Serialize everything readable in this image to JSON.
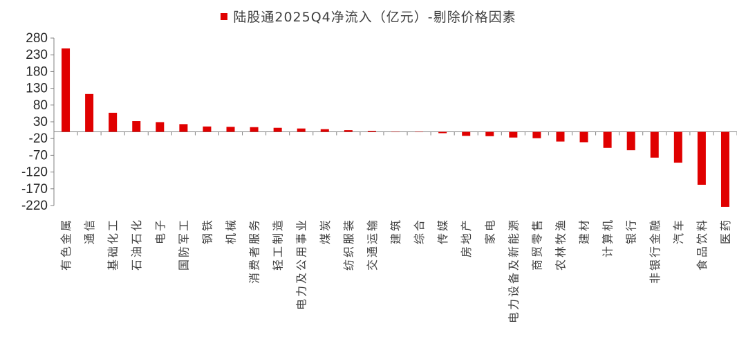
{
  "chart_data": {
    "type": "bar",
    "series": [
      {
        "name": "陆股通2025Q4净流入（亿元）-剔除价格因素",
        "color": "#e00000"
      }
    ],
    "categories": [
      "有色金属",
      "通信",
      "基础化工",
      "石油石化",
      "电子",
      "国防军工",
      "钢铁",
      "机械",
      "消费者服务",
      "轻工制造",
      "电力及公用事业",
      "煤炭",
      "纺织服装",
      "交通运输",
      "建筑",
      "综合",
      "传媒",
      "房地产",
      "家电",
      "电力设备及新能源",
      "商贸零售",
      "农林牧渔",
      "建材",
      "计算机",
      "银行",
      "非银行金融",
      "汽车",
      "食品饮料",
      "医药"
    ],
    "values": [
      249,
      113,
      57,
      32,
      29,
      23,
      16,
      15,
      14,
      12,
      10,
      8,
      5,
      3,
      0,
      0,
      -4,
      -12,
      -13,
      -17,
      -19,
      -29,
      -31,
      -48,
      -55,
      -77,
      -92,
      -158,
      -224
    ],
    "ylim": [
      -220,
      280
    ],
    "yticks": [
      280,
      230,
      180,
      130,
      80,
      30,
      -20,
      -70,
      -120,
      -170,
      -220
    ],
    "grid": false,
    "legend_position": "top"
  }
}
